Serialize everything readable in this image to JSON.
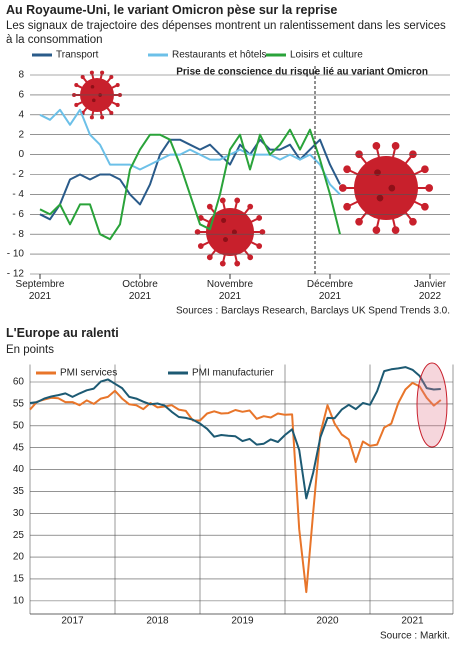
{
  "chart_data": [
    {
      "type": "line",
      "title": "Au Royaume-Uni, le variant Omicron pèse sur la reprise",
      "subtitle": "Les signaux de trajectoire des dépenses montrent un ralentissement dans les services à la consommation",
      "annotation": "Prise de conscience du risque lié au variant Omicron",
      "source": "Sources : Barclays Research, Barclays UK Spend Trends 3.0.",
      "categories": [
        "Septembre 2021",
        null,
        null,
        null,
        null,
        null,
        null,
        null,
        null,
        null,
        "Octobre 2021",
        null,
        null,
        null,
        null,
        null,
        null,
        null,
        null,
        "Novembre 2021",
        null,
        null,
        null,
        null,
        null,
        null,
        null,
        null,
        null,
        "Décembre 2021",
        null,
        null,
        null,
        null,
        null,
        null,
        null,
        null,
        null,
        "Janvier 2022"
      ],
      "series": [
        {
          "name": "Transport",
          "color": "#2a5b8a",
          "values": [
            -6,
            -6.5,
            -5,
            -2.5,
            -2,
            -2.5,
            -2,
            -2,
            -2.5,
            -4,
            -5,
            -3,
            0,
            1.5,
            1.5,
            1,
            0.5,
            1,
            0,
            -1,
            1,
            0,
            1.5,
            0.5,
            0.5,
            1,
            -0.5,
            0.5,
            1.5,
            -1,
            -3,
            null,
            null,
            null,
            null,
            null,
            null,
            null,
            null,
            null
          ]
        },
        {
          "name": "Restaurants et hôtels",
          "color": "#6cc0e8",
          "values": [
            4,
            3.5,
            4.5,
            3,
            4.5,
            2,
            1,
            -1,
            -1,
            -1,
            -1.5,
            -1,
            -0.5,
            0,
            0,
            0.5,
            0,
            -0.5,
            -0.5,
            0,
            0.5,
            0,
            0,
            0,
            -0.5,
            0,
            -0.5,
            0,
            -1,
            -3,
            -4,
            null,
            null,
            null,
            null,
            null,
            null,
            null,
            null,
            null
          ]
        },
        {
          "name": "Loisirs et culture",
          "color": "#2aa33a",
          "values": [
            -5.5,
            -6,
            -5,
            -7,
            -5,
            -5,
            -8,
            -8.5,
            -7,
            -1.5,
            0.5,
            2,
            2,
            1.5,
            -1,
            -4,
            -7,
            -7.5,
            -4,
            0.5,
            2,
            -1.5,
            2,
            0,
            1,
            2.5,
            0.5,
            2.5,
            -0.5,
            -4,
            -8,
            null,
            null,
            null,
            null,
            null,
            null,
            null,
            null,
            null
          ]
        }
      ],
      "ylim": [
        -12,
        8
      ],
      "yticks": [
        8,
        6,
        4,
        2,
        0,
        {
          "value": -2,
          "label": "- 2"
        },
        {
          "value": -4,
          "label": "- 4"
        },
        {
          "value": -6,
          "label": "- 6"
        },
        {
          "value": -8,
          "label": "- 8"
        },
        {
          "value": -10,
          "label": "- 10"
        },
        {
          "value": -12,
          "label": "- 12"
        }
      ],
      "grid": true
    },
    {
      "type": "line",
      "title": "L'Europe au ralenti",
      "subtitle": "En points",
      "source": "Source : Markit.",
      "categories": [
        null,
        null,
        null,
        null,
        null,
        null,
        "2017",
        null,
        null,
        null,
        null,
        null,
        null,
        null,
        null,
        null,
        null,
        null,
        "2018",
        null,
        null,
        null,
        null,
        null,
        null,
        null,
        null,
        null,
        null,
        null,
        "2019",
        null,
        null,
        null,
        null,
        null,
        null,
        null,
        null,
        null,
        null,
        null,
        "2020",
        null,
        null,
        null,
        null,
        null,
        null,
        null,
        null,
        null,
        null,
        null,
        "2021",
        null,
        null,
        null,
        null
      ],
      "series": [
        {
          "name": "PMI services",
          "color": "#e8752a",
          "values": [
            53.7,
            55.5,
            56.0,
            56.4,
            56.3,
            55.4,
            55.4,
            54.7,
            55.8,
            55.0,
            56.2,
            56.6,
            58.0,
            56.2,
            54.9,
            54.7,
            53.8,
            55.2,
            54.2,
            54.4,
            54.7,
            53.7,
            53.4,
            51.2,
            51.2,
            52.8,
            53.3,
            52.8,
            52.9,
            53.6,
            53.2,
            53.5,
            51.6,
            52.2,
            51.9,
            52.8,
            52.5,
            52.6,
            26.4,
            12.0,
            30.5,
            48.3,
            54.7,
            50.5,
            48.0,
            46.9,
            41.7,
            46.4,
            45.4,
            45.7,
            49.6,
            50.5,
            55.2,
            58.3,
            59.8,
            59.0,
            56.4,
            54.6,
            55.9
          ]
        },
        {
          "name": "PMI manufacturier",
          "color": "#1d5a73",
          "values": [
            55.2,
            55.4,
            56.2,
            56.7,
            57.0,
            57.4,
            56.6,
            57.4,
            58.1,
            58.5,
            60.1,
            60.6,
            59.6,
            58.6,
            56.6,
            56.2,
            55.5,
            54.9,
            55.1,
            54.6,
            53.2,
            52.0,
            51.8,
            51.4,
            50.5,
            49.3,
            47.5,
            47.9,
            47.7,
            47.6,
            46.5,
            47.0,
            45.7,
            45.9,
            46.9,
            46.3,
            47.9,
            49.2,
            44.5,
            33.4,
            39.4,
            47.4,
            51.8,
            51.7,
            53.7,
            54.8,
            53.8,
            55.2,
            54.8,
            57.9,
            62.5,
            62.9,
            63.1,
            63.4,
            62.8,
            61.4,
            58.6,
            58.3,
            58.4
          ]
        }
      ],
      "ylim": [
        7,
        64
      ],
      "yticks": [
        10,
        15,
        20,
        25,
        30,
        35,
        40,
        45,
        50,
        55,
        60
      ],
      "grid": true
    }
  ]
}
